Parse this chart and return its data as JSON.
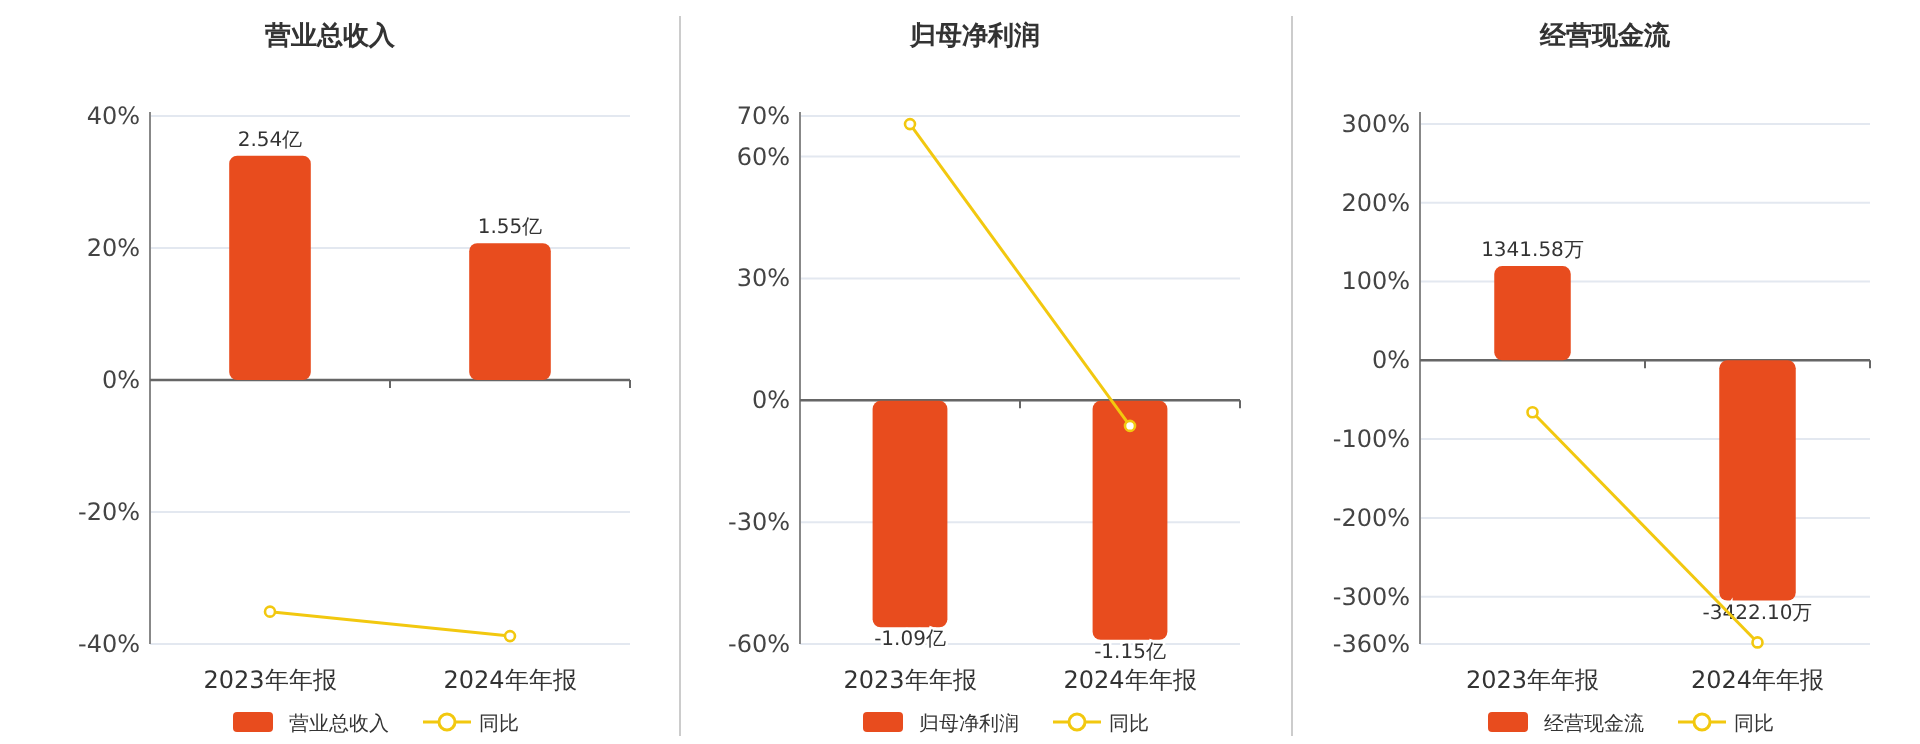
{
  "chart_data": [
    {
      "type": "bar",
      "title": "营业总收入",
      "categories": [
        "2023年年报",
        "2024年年报"
      ],
      "series": [
        {
          "name": "营业总收入",
          "color": "#e84c1e",
          "axis": "y2",
          "values": [
            2.54,
            1.55
          ],
          "value_labels": [
            "2.54亿",
            "1.55亿"
          ]
        },
        {
          "name": "同比",
          "type": "line",
          "color": "#f2c80f",
          "values": [
            -35.1,
            -38.8
          ]
        }
      ],
      "ylim": [
        -40,
        40
      ],
      "yticks": [
        {
          "value": -40,
          "label": "-40%"
        },
        {
          "value": -20,
          "label": "-20%"
        },
        {
          "value": 0,
          "label": "0%"
        },
        {
          "value": 20,
          "label": "20%"
        },
        {
          "value": 40,
          "label": "40%"
        }
      ],
      "y2lim": [
        -2.99,
        2.99
      ],
      "grid": "y",
      "legend": "bottom",
      "marker": "circle"
    },
    {
      "type": "bar",
      "title": "归母净利润",
      "categories": [
        "2023年年报",
        "2024年年报"
      ],
      "series": [
        {
          "name": "归母净利润",
          "color": "#e84c1e",
          "axis": "y2",
          "values": [
            -1.09,
            -1.15
          ],
          "value_labels": [
            "-1.09亿",
            "-1.15亿"
          ]
        },
        {
          "name": "同比",
          "type": "line",
          "color": "#f2c80f",
          "values": [
            68,
            -6.3
          ]
        }
      ],
      "ylim": [
        -60,
        70
      ],
      "yticks": [
        {
          "value": -60,
          "label": "-60%"
        },
        {
          "value": -30,
          "label": "-30%"
        },
        {
          "value": 0,
          "label": "0%"
        },
        {
          "value": 30,
          "label": "30%"
        },
        {
          "value": 60,
          "label": "60%"
        },
        {
          "value": 70,
          "label": "70%"
        }
      ],
      "y2lim": [
        -1.17,
        1.37
      ],
      "grid": "y",
      "legend": "bottom",
      "marker": "circle"
    },
    {
      "type": "bar",
      "title": "经营现金流",
      "categories": [
        "2023年年报",
        "2024年年报"
      ],
      "series": [
        {
          "name": "经营现金流",
          "color": "#e84c1e",
          "axis": "y2",
          "values": [
            1341.58,
            -3422.1
          ],
          "value_labels": [
            "1341.58万",
            "-3422.10万"
          ]
        },
        {
          "name": "同比",
          "type": "line",
          "color": "#f2c80f",
          "values": [
            -66,
            -358
          ]
        }
      ],
      "ylim": [
        -360,
        310
      ],
      "yticks": [
        {
          "value": -360,
          "label": "-360%"
        },
        {
          "value": -300,
          "label": "-300%"
        },
        {
          "value": -200,
          "label": "-200%"
        },
        {
          "value": -100,
          "label": "-100%"
        },
        {
          "value": 0,
          "label": "0%"
        },
        {
          "value": 100,
          "label": "100%"
        },
        {
          "value": 200,
          "label": "200%"
        },
        {
          "value": 300,
          "label": "300%"
        }
      ],
      "y2lim": [
        -4040,
        3479
      ],
      "grid": "y",
      "legend": "bottom",
      "marker": "circle"
    }
  ]
}
